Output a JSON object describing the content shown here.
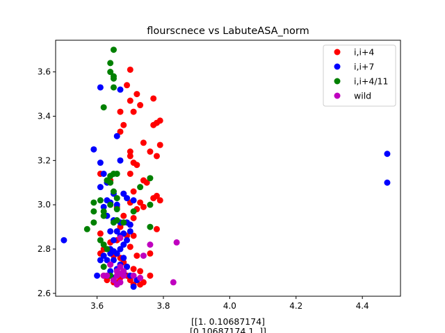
{
  "chart_data": {
    "type": "scatter",
    "title": "flourscnece vs LabuteASA_norm",
    "xlabel_lines": [
      "[[1.         0.10687174]",
      "[0.10687174 1.        ]]"
    ],
    "ylabel": "",
    "xlim": [
      3.475,
      4.515
    ],
    "ylim": [
      2.587,
      3.743
    ],
    "xticks": [
      3.6,
      3.8,
      4.0,
      4.2,
      4.4
    ],
    "xtick_labels": [
      "3.6",
      "3.8",
      "4.0",
      "4.2",
      "4.4"
    ],
    "yticks": [
      2.6,
      2.8,
      3.0,
      3.2,
      3.4,
      3.6
    ],
    "ytick_labels": [
      "2.6",
      "2.8",
      "3.0",
      "3.2",
      "3.4",
      "3.6"
    ],
    "grid": false,
    "legend_position": "top-right",
    "series": [
      {
        "name": "i,i+4",
        "color": "#ff0000",
        "points": [
          [
            3.69,
            3.54
          ],
          [
            3.7,
            3.61
          ],
          [
            3.72,
            3.5
          ],
          [
            3.77,
            3.48
          ],
          [
            3.73,
            3.45
          ],
          [
            3.7,
            3.47
          ],
          [
            3.71,
            3.42
          ],
          [
            3.67,
            3.42
          ],
          [
            3.68,
            3.36
          ],
          [
            3.67,
            3.33
          ],
          [
            3.79,
            3.38
          ],
          [
            3.78,
            3.37
          ],
          [
            3.77,
            3.36
          ],
          [
            3.74,
            3.28
          ],
          [
            3.76,
            3.24
          ],
          [
            3.79,
            3.27
          ],
          [
            3.78,
            3.22
          ],
          [
            3.7,
            3.24
          ],
          [
            3.7,
            3.22
          ],
          [
            3.71,
            3.19
          ],
          [
            3.72,
            3.18
          ],
          [
            3.7,
            3.14
          ],
          [
            3.61,
            3.14
          ],
          [
            3.64,
            3.11
          ],
          [
            3.74,
            3.11
          ],
          [
            3.75,
            3.1
          ],
          [
            3.71,
            3.06
          ],
          [
            3.68,
            3.05
          ],
          [
            3.78,
            3.04
          ],
          [
            3.77,
            3.03
          ],
          [
            3.79,
            3.02
          ],
          [
            3.7,
            3.01
          ],
          [
            3.73,
            3.01
          ],
          [
            3.74,
            2.99
          ],
          [
            3.72,
            2.98
          ],
          [
            3.66,
            2.99
          ],
          [
            3.68,
            2.95
          ],
          [
            3.7,
            2.91
          ],
          [
            3.71,
            2.94
          ],
          [
            3.67,
            2.9
          ],
          [
            3.78,
            2.89
          ],
          [
            3.66,
            2.88
          ],
          [
            3.61,
            2.87
          ],
          [
            3.69,
            2.86
          ],
          [
            3.71,
            2.86
          ],
          [
            3.66,
            2.84
          ],
          [
            3.64,
            2.83
          ],
          [
            3.7,
            2.81
          ],
          [
            3.62,
            2.8
          ],
          [
            3.61,
            2.78
          ],
          [
            3.76,
            2.78
          ],
          [
            3.65,
            2.77
          ],
          [
            3.67,
            2.76
          ],
          [
            3.72,
            2.77
          ],
          [
            3.68,
            2.74
          ],
          [
            3.69,
            2.72
          ],
          [
            3.64,
            2.73
          ],
          [
            3.71,
            2.71
          ],
          [
            3.73,
            2.7
          ],
          [
            3.62,
            2.68
          ],
          [
            3.76,
            2.68
          ],
          [
            3.69,
            2.68
          ],
          [
            3.67,
            2.67
          ],
          [
            3.63,
            2.66
          ],
          [
            3.65,
            2.65
          ],
          [
            3.7,
            2.66
          ],
          [
            3.74,
            2.65
          ],
          [
            3.71,
            2.64
          ],
          [
            3.73,
            2.64
          ],
          [
            3.66,
            2.65
          ]
        ]
      },
      {
        "name": "i,i+7",
        "color": "#0000ff",
        "points": [
          [
            3.61,
            3.53
          ],
          [
            3.67,
            3.52
          ],
          [
            3.66,
            3.31
          ],
          [
            3.59,
            3.25
          ],
          [
            3.61,
            3.19
          ],
          [
            3.67,
            3.2
          ],
          [
            3.62,
            3.14
          ],
          [
            3.63,
            3.1
          ],
          [
            3.61,
            3.08
          ],
          [
            3.65,
            3.05
          ],
          [
            3.68,
            3.05
          ],
          [
            3.69,
            3.03
          ],
          [
            3.71,
            3.02
          ],
          [
            3.63,
            3.02
          ],
          [
            3.64,
            3.01
          ],
          [
            3.66,
            3.0
          ],
          [
            3.62,
            2.99
          ],
          [
            3.63,
            2.95
          ],
          [
            3.65,
            2.93
          ],
          [
            3.67,
            2.92
          ],
          [
            3.69,
            2.92
          ],
          [
            3.7,
            2.91
          ],
          [
            3.64,
            2.88
          ],
          [
            3.66,
            2.88
          ],
          [
            3.68,
            2.87
          ],
          [
            3.7,
            2.88
          ],
          [
            3.67,
            2.86
          ],
          [
            3.69,
            2.84
          ],
          [
            3.65,
            2.84
          ],
          [
            3.68,
            2.82
          ],
          [
            3.64,
            2.8
          ],
          [
            3.65,
            2.79
          ],
          [
            3.67,
            2.8
          ],
          [
            3.66,
            2.78
          ],
          [
            3.62,
            2.77
          ],
          [
            3.64,
            2.78
          ],
          [
            3.68,
            2.76
          ],
          [
            3.63,
            2.75
          ],
          [
            3.65,
            2.75
          ],
          [
            3.61,
            2.75
          ],
          [
            3.67,
            2.73
          ],
          [
            3.69,
            2.72
          ],
          [
            3.66,
            2.71
          ],
          [
            3.64,
            2.7
          ],
          [
            3.68,
            2.69
          ],
          [
            3.7,
            2.68
          ],
          [
            3.65,
            2.67
          ],
          [
            3.6,
            2.68
          ],
          [
            3.63,
            2.68
          ],
          [
            3.72,
            2.66
          ],
          [
            3.71,
            2.63
          ],
          [
            3.5,
            2.84
          ],
          [
            4.475,
            3.23
          ],
          [
            4.475,
            3.1
          ]
        ]
      },
      {
        "name": "i,i+4/11",
        "color": "#008000",
        "points": [
          [
            3.65,
            3.7
          ],
          [
            3.64,
            3.64
          ],
          [
            3.64,
            3.6
          ],
          [
            3.65,
            3.58
          ],
          [
            3.65,
            3.57
          ],
          [
            3.65,
            3.53
          ],
          [
            3.62,
            3.44
          ],
          [
            3.65,
            3.14
          ],
          [
            3.64,
            3.13
          ],
          [
            3.66,
            3.14
          ],
          [
            3.63,
            3.11
          ],
          [
            3.64,
            3.1
          ],
          [
            3.76,
            3.12
          ],
          [
            3.73,
            3.08
          ],
          [
            3.65,
            3.06
          ],
          [
            3.66,
            3.03
          ],
          [
            3.59,
            3.01
          ],
          [
            3.61,
            3.02
          ],
          [
            3.64,
            3.0
          ],
          [
            3.66,
            2.98
          ],
          [
            3.62,
            2.97
          ],
          [
            3.59,
            2.97
          ],
          [
            3.62,
            2.95
          ],
          [
            3.66,
            2.93
          ],
          [
            3.59,
            2.92
          ],
          [
            3.65,
            2.92
          ],
          [
            3.68,
            2.92
          ],
          [
            3.57,
            2.89
          ],
          [
            3.71,
            2.97
          ],
          [
            3.76,
            3.0
          ],
          [
            3.76,
            2.9
          ],
          [
            3.61,
            2.84
          ],
          [
            3.62,
            2.82
          ],
          [
            3.63,
            2.8
          ],
          [
            3.62,
            2.72
          ],
          [
            3.64,
            2.68
          ],
          [
            3.66,
            2.7
          ]
        ]
      },
      {
        "name": "wild",
        "color": "#bf00bf",
        "points": [
          [
            3.84,
            2.83
          ],
          [
            3.76,
            2.82
          ],
          [
            3.67,
            2.85
          ],
          [
            3.74,
            2.77
          ],
          [
            3.64,
            2.73
          ],
          [
            3.67,
            2.72
          ],
          [
            3.66,
            2.7
          ],
          [
            3.68,
            2.7
          ],
          [
            3.67,
            2.69
          ],
          [
            3.68,
            2.68
          ],
          [
            3.63,
            2.68
          ],
          [
            3.62,
            2.68
          ],
          [
            3.66,
            2.68
          ],
          [
            3.71,
            2.68
          ],
          [
            3.73,
            2.67
          ],
          [
            3.65,
            2.66
          ],
          [
            3.83,
            2.65
          ],
          [
            3.66,
            2.64
          ],
          [
            3.67,
            2.65
          ]
        ]
      }
    ]
  }
}
